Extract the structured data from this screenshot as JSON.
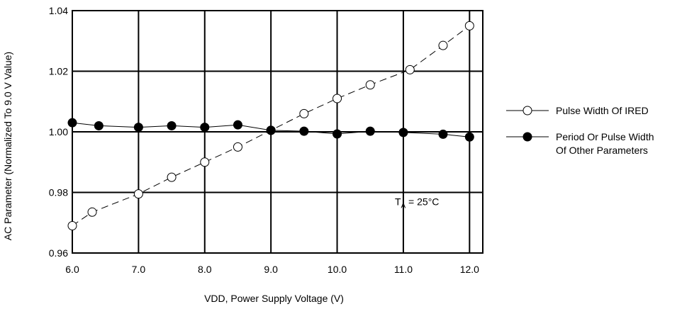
{
  "chart_data": {
    "type": "line",
    "title": "",
    "xlabel": "VDD, Power Supply Voltage (V)",
    "ylabel": "AC Parameter (Normalized To 9.0 V Value)",
    "xlim": [
      6.0,
      12.2
    ],
    "ylim": [
      0.96,
      1.04
    ],
    "x_ticks": [
      "6.0",
      "7.0",
      "8.0",
      "9.0",
      "10.0",
      "11.0",
      "12.0"
    ],
    "x_tick_values": [
      6.0,
      7.0,
      8.0,
      9.0,
      10.0,
      11.0,
      12.0
    ],
    "y_ticks": [
      "0.96",
      "0.98",
      "1.00",
      "1.02",
      "1.04"
    ],
    "y_tick_values": [
      0.96,
      0.98,
      1.0,
      1.02,
      1.04
    ],
    "grid": true,
    "legend_position": "right",
    "annotation": {
      "main": "T",
      "sub": "A",
      "rest": " = 25°C",
      "x": 11.3,
      "y": 0.977
    },
    "series": [
      {
        "name": "Pulse Width Of IRED",
        "marker": "open-circle",
        "line": "dashed",
        "x": [
          6.0,
          6.3,
          7.0,
          7.5,
          8.0,
          8.5,
          9.0,
          9.5,
          10.0,
          10.5,
          11.1,
          11.6,
          12.0
        ],
        "y": [
          0.969,
          0.9735,
          0.9795,
          0.985,
          0.99,
          0.995,
          1.0005,
          1.006,
          1.011,
          1.0155,
          1.0205,
          1.0285,
          1.035
        ]
      },
      {
        "name": "Period Or Pulse Width Of Other Parameters",
        "name_lines": [
          "Period Or Pulse Width",
          "Of Other Parameters"
        ],
        "marker": "filled-circle",
        "line": "solid",
        "x": [
          6.0,
          6.4,
          7.0,
          7.5,
          8.0,
          8.5,
          9.0,
          9.5,
          10.0,
          10.5,
          11.0,
          11.6,
          12.0
        ],
        "y": [
          1.003,
          1.002,
          1.0015,
          1.002,
          1.0015,
          1.0023,
          1.0005,
          1.0002,
          0.9993,
          1.0002,
          0.9998,
          0.9992,
          0.9983
        ]
      }
    ]
  }
}
